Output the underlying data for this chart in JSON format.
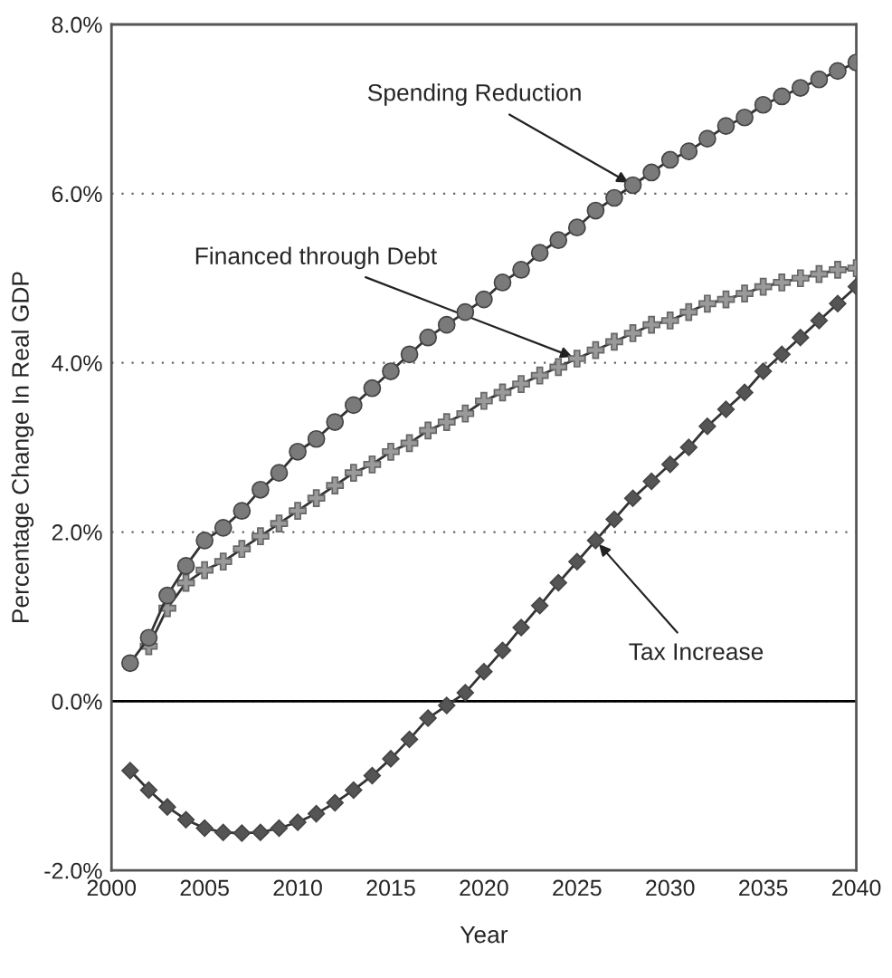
{
  "chart_data": {
    "type": "line",
    "xlabel": "Year",
    "ylabel": "Percentage Change In Real GDP",
    "x": [
      2001,
      2002,
      2003,
      2004,
      2005,
      2006,
      2007,
      2008,
      2009,
      2010,
      2011,
      2012,
      2013,
      2014,
      2015,
      2016,
      2017,
      2018,
      2019,
      2020,
      2021,
      2022,
      2023,
      2024,
      2025,
      2026,
      2027,
      2028,
      2029,
      2030,
      2031,
      2032,
      2033,
      2034,
      2035,
      2036,
      2037,
      2038,
      2039,
      2040
    ],
    "series": [
      {
        "name": "Spending Reduction",
        "color": "#7a7a7a",
        "marker": "circle",
        "values": [
          0.45,
          0.75,
          1.25,
          1.6,
          1.9,
          2.05,
          2.25,
          2.5,
          2.7,
          2.95,
          3.1,
          3.3,
          3.5,
          3.7,
          3.9,
          4.1,
          4.3,
          4.45,
          4.6,
          4.75,
          4.95,
          5.1,
          5.3,
          5.45,
          5.6,
          5.8,
          5.95,
          6.1,
          6.25,
          6.4,
          6.5,
          6.65,
          6.8,
          6.9,
          7.05,
          7.15,
          7.25,
          7.35,
          7.45,
          7.55
        ]
      },
      {
        "name": "Financed through Debt",
        "color": "#9a9a9a",
        "marker": "cross",
        "values": [
          null,
          0.65,
          1.1,
          1.4,
          1.55,
          1.65,
          1.8,
          1.95,
          2.1,
          2.25,
          2.4,
          2.55,
          2.7,
          2.8,
          2.95,
          3.05,
          3.2,
          3.3,
          3.4,
          3.55,
          3.65,
          3.75,
          3.85,
          3.95,
          4.05,
          4.15,
          4.25,
          4.35,
          4.45,
          4.5,
          4.6,
          4.7,
          4.75,
          4.82,
          4.9,
          4.95,
          5.0,
          5.05,
          5.1,
          5.12
        ]
      },
      {
        "name": "Tax Increase",
        "color": "#555555",
        "marker": "diamond",
        "values": [
          -0.82,
          -1.05,
          -1.25,
          -1.4,
          -1.5,
          -1.55,
          -1.56,
          -1.55,
          -1.5,
          -1.43,
          -1.33,
          -1.2,
          -1.05,
          -0.88,
          -0.68,
          -0.45,
          -0.2,
          -0.05,
          0.1,
          0.35,
          0.6,
          0.87,
          1.13,
          1.4,
          1.65,
          1.9,
          2.15,
          2.4,
          2.6,
          2.8,
          3.0,
          3.25,
          3.45,
          3.65,
          3.9,
          4.1,
          4.3,
          4.5,
          4.7,
          4.9
        ]
      }
    ],
    "xlim": [
      2000,
      2040
    ],
    "xticks": [
      2000,
      2005,
      2010,
      2015,
      2020,
      2025,
      2030,
      2035,
      2040
    ],
    "ylim": [
      -2,
      8
    ],
    "yticks": [
      {
        "value": -2,
        "label": "-2.0%"
      },
      {
        "value": 0,
        "label": "0.0%"
      },
      {
        "value": 2,
        "label": "2.0%"
      },
      {
        "value": 4,
        "label": "4.0%"
      },
      {
        "value": 6,
        "label": "6.0%"
      },
      {
        "value": 8,
        "label": "8.0%"
      }
    ],
    "grid": "y",
    "ref_lines": [
      {
        "axis": "y",
        "value": 0,
        "color": "#000000",
        "line_style": "solid"
      }
    ],
    "legend": false
  }
}
